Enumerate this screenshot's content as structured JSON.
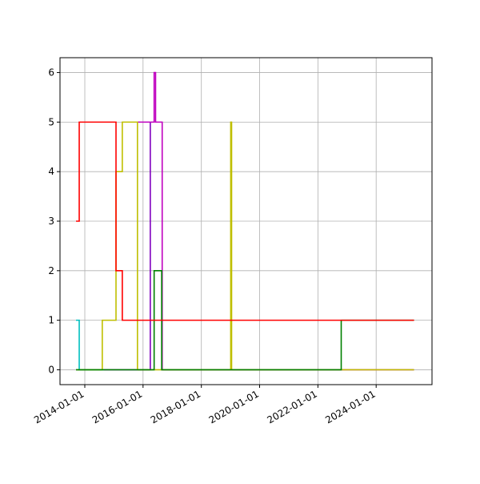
{
  "chart_data": {
    "type": "step",
    "xlim": [
      "2013-02-24",
      "2025-12-01"
    ],
    "xticks": [
      "2014-01-01",
      "2016-01-01",
      "2018-01-01",
      "2020-01-01",
      "2022-01-01",
      "2024-01-01"
    ],
    "ylim": [
      -0.3,
      6.3
    ],
    "yticks": [
      0,
      1,
      2,
      3,
      4,
      5,
      6
    ],
    "grid": true,
    "series": [
      {
        "color": "#00bfbf",
        "x": [
          "2013-09-13",
          "2013-10-23",
          "2014-08-26"
        ],
        "values": [
          1,
          0,
          0
        ]
      },
      {
        "color": "#7f00bf",
        "x": [
          "2014-08-26",
          "2016-04-01"
        ],
        "values": [
          0,
          5
        ]
      },
      {
        "color": "#bf00bf",
        "x": [
          "2015-10-23",
          "2016-05-19",
          "2016-06-06",
          "2016-08-28",
          "2025-04-20"
        ],
        "values": [
          5,
          6,
          5,
          0,
          0
        ]
      },
      {
        "color": "#bfbf00",
        "x": [
          "2013-09-13",
          "2014-08-08",
          "2015-01-27",
          "2015-04-16",
          "2015-10-23",
          "2019-01-04",
          "2019-01-15",
          "2025-04-20"
        ],
        "values": [
          0,
          1,
          4,
          5,
          0,
          5,
          0,
          0
        ]
      },
      {
        "color": "#008000",
        "x": [
          "2013-09-13",
          "2016-05-19",
          "2016-08-22",
          "2022-10-20",
          "2025-04-20"
        ],
        "values": [
          0,
          2,
          0,
          1,
          1
        ]
      },
      {
        "color": "#ff0000",
        "x": [
          "2013-09-13",
          "2013-10-23",
          "2015-01-27",
          "2015-04-16",
          "2025-04-20"
        ],
        "values": [
          3,
          5,
          2,
          1,
          1
        ]
      }
    ]
  }
}
